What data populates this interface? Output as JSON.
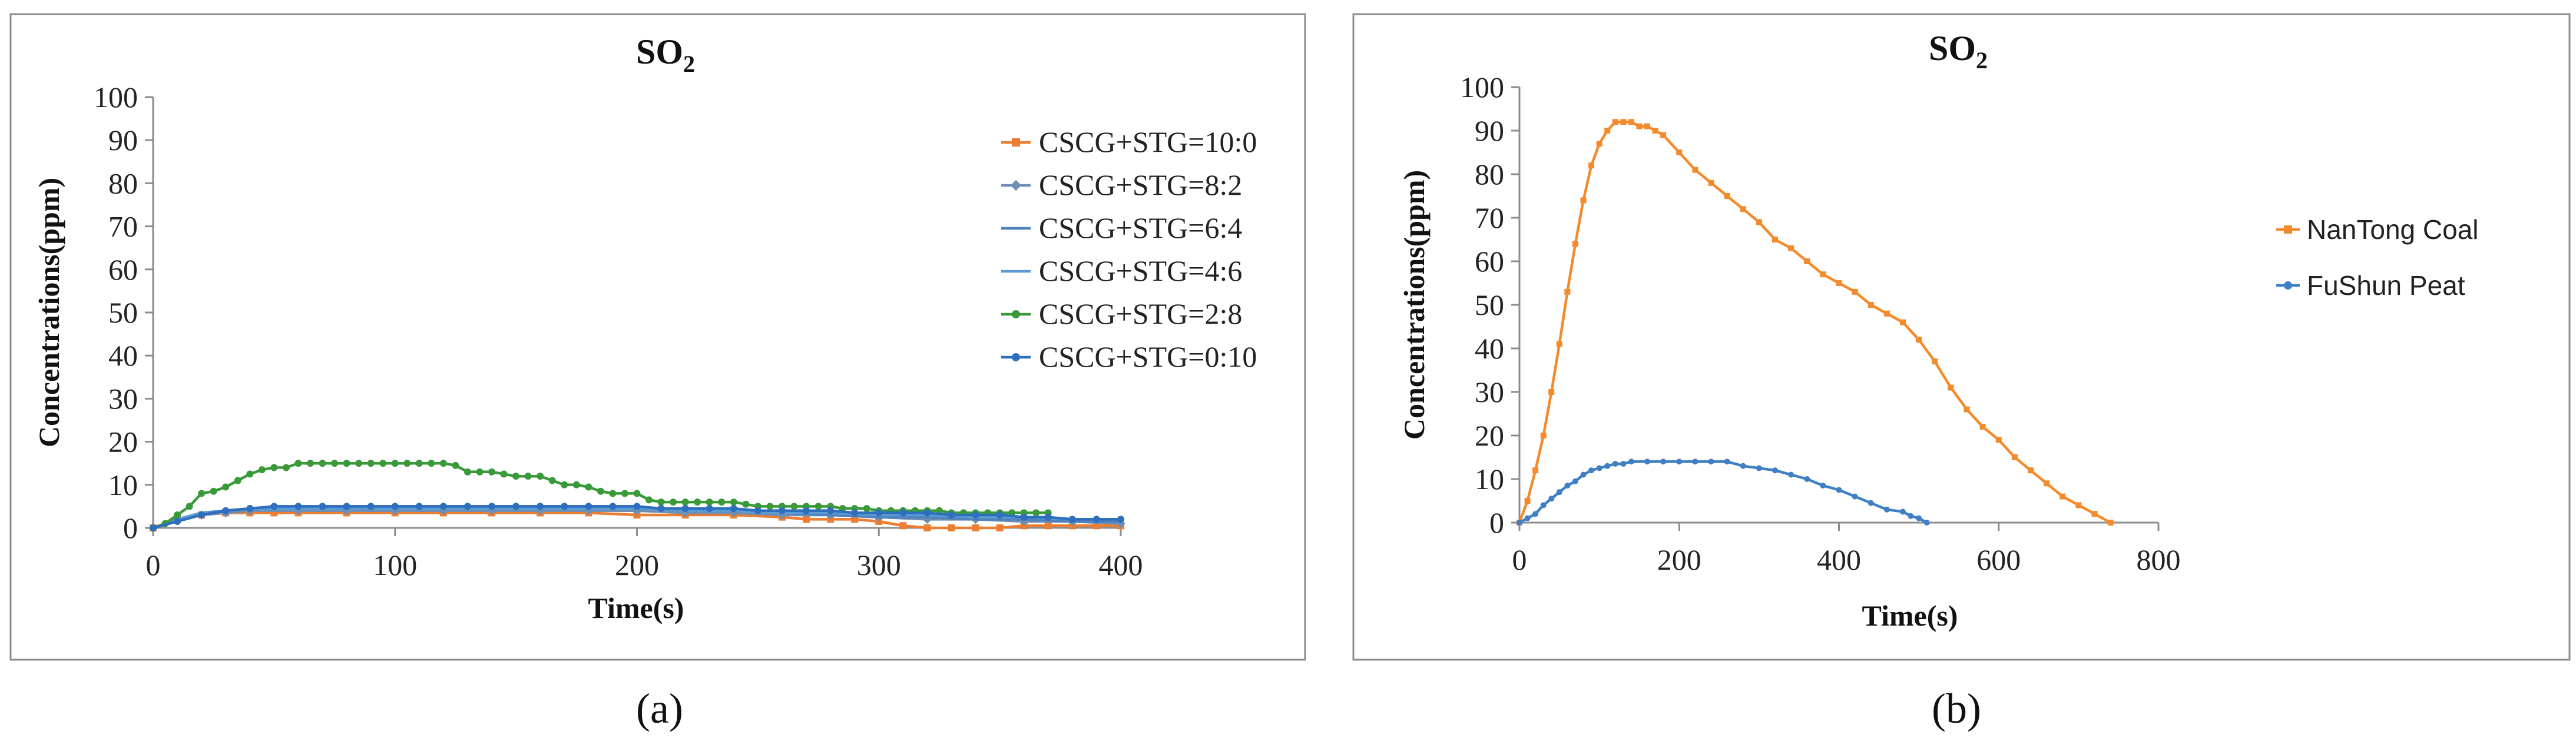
{
  "charts": [
    {
      "caption": "(a)",
      "chart_data": {
        "type": "line",
        "title_main": "SO",
        "title_sub": "2",
        "xlabel": "Time(s)",
        "ylabel": "Concentrations(ppm)",
        "xlim": [
          0,
          400
        ],
        "ylim": [
          0,
          100
        ],
        "xticks": [
          0,
          100,
          200,
          300,
          400
        ],
        "yticks": [
          0,
          10,
          20,
          30,
          40,
          50,
          60,
          70,
          80,
          90,
          100
        ],
        "legend_position": "right",
        "series": [
          {
            "name": "CSCG+STG=10:0",
            "color": "#ed7d31",
            "marker": "square",
            "x": [
              0,
              10,
              20,
              30,
              40,
              50,
              60,
              80,
              100,
              120,
              140,
              160,
              180,
              200,
              220,
              240,
              260,
              270,
              280,
              290,
              300,
              310,
              320,
              330,
              340,
              350,
              360,
              370,
              380,
              390,
              400
            ],
            "y": [
              0,
              2,
              3,
              3.5,
              3.5,
              3.5,
              3.5,
              3.5,
              3.5,
              3.5,
              3.5,
              3.5,
              3.5,
              3,
              3,
              3,
              2.5,
              2,
              2,
              2,
              1.5,
              0.5,
              0,
              0,
              0,
              0,
              0.5,
              0.5,
              0.5,
              0.5,
              0.5
            ]
          },
          {
            "name": "CSCG+STG=8:2",
            "color": "#6e8fb3",
            "marker": "diamond",
            "x": [
              0,
              10,
              20,
              30,
              40,
              60,
              80,
              100,
              120,
              140,
              160,
              180,
              200,
              220,
              240,
              260,
              280,
              300,
              320,
              340,
              360,
              380,
              400
            ],
            "y": [
              0,
              2,
              3,
              3.5,
              4,
              4,
              4,
              4,
              4,
              4,
              4,
              4,
              4,
              3.5,
              3.5,
              3,
              3,
              2.5,
              2,
              2,
              1.5,
              1.5,
              1
            ]
          },
          {
            "name": "CSCG+STG=6:4",
            "color": "#4f81bd",
            "marker": "none",
            "x": [
              0,
              10,
              20,
              30,
              40,
              60,
              80,
              100,
              120,
              140,
              160,
              180,
              200,
              220,
              240,
              260,
              280,
              300,
              320,
              340,
              360,
              380,
              400
            ],
            "y": [
              0,
              2,
              3.5,
              4,
              4.5,
              4.5,
              4.5,
              4.5,
              4.5,
              4.5,
              4.5,
              4.5,
              4.5,
              4,
              4,
              3.5,
              3,
              2.5,
              2.5,
              2,
              2,
              1.5,
              1.5
            ]
          },
          {
            "name": "CSCG+STG=4:6",
            "color": "#5b9bd5",
            "marker": "none",
            "x": [
              0,
              10,
              20,
              30,
              40,
              60,
              80,
              100,
              120,
              140,
              160,
              180,
              200,
              220,
              240,
              260,
              280,
              300,
              320,
              340,
              360,
              380,
              400
            ],
            "y": [
              0,
              2,
              3.5,
              4,
              4.5,
              4.5,
              4.5,
              4.5,
              4.5,
              4.5,
              4.5,
              4.5,
              4.5,
              4,
              4,
              3.5,
              3.5,
              3,
              3,
              2.5,
              2.5,
              2,
              2
            ]
          },
          {
            "name": "CSCG+STG=2:8",
            "color": "#3a9a3a",
            "marker": "circle",
            "x": [
              0,
              5,
              10,
              15,
              20,
              25,
              30,
              35,
              40,
              45,
              50,
              55,
              60,
              65,
              70,
              75,
              80,
              85,
              90,
              95,
              100,
              105,
              110,
              115,
              120,
              125,
              130,
              135,
              140,
              145,
              150,
              155,
              160,
              165,
              170,
              175,
              180,
              185,
              190,
              195,
              200,
              205,
              210,
              215,
              220,
              225,
              230,
              235,
              240,
              245,
              250,
              255,
              260,
              265,
              270,
              275,
              280,
              285,
              290,
              295,
              300,
              305,
              310,
              315,
              320,
              325,
              330,
              335,
              340,
              345,
              350,
              355,
              360,
              365,
              370
            ],
            "y": [
              0,
              1,
              3,
              5,
              8,
              8.5,
              9.5,
              11,
              12.5,
              13.5,
              14,
              14,
              15,
              15,
              15,
              15,
              15,
              15,
              15,
              15,
              15,
              15,
              15,
              15,
              15,
              14.5,
              13,
              13,
              13,
              12.5,
              12,
              12,
              12,
              11,
              10,
              10,
              9.5,
              8.5,
              8,
              8,
              8,
              6.5,
              6,
              6,
              6,
              6,
              6,
              6,
              6,
              5.5,
              5,
              5,
              5,
              5,
              5,
              5,
              5,
              4.5,
              4.5,
              4.5,
              4,
              4,
              4,
              4,
              4,
              4,
              3.5,
              3.5,
              3.5,
              3.5,
              3.5,
              3.5,
              3.5,
              3.5,
              3.5
            ]
          },
          {
            "name": "CSCG+STG=0:10",
            "color": "#2e6fbd",
            "marker": "circle",
            "x": [
              0,
              10,
              20,
              30,
              40,
              50,
              60,
              70,
              80,
              90,
              100,
              110,
              120,
              130,
              140,
              150,
              160,
              170,
              180,
              190,
              200,
              210,
              220,
              230,
              240,
              250,
              260,
              270,
              280,
              290,
              300,
              310,
              320,
              330,
              340,
              350,
              360,
              370,
              380,
              390,
              400
            ],
            "y": [
              0,
              1.5,
              3,
              4,
              4.5,
              5,
              5,
              5,
              5,
              5,
              5,
              5,
              5,
              5,
              5,
              5,
              5,
              5,
              5,
              5,
              5,
              4.5,
              4.5,
              4.5,
              4.5,
              4,
              4,
              4,
              4,
              3.5,
              3.5,
              3.5,
              3.5,
              3,
              3,
              3,
              2.5,
              2.5,
              2,
              2,
              2
            ]
          }
        ]
      }
    },
    {
      "caption": "(b)",
      "chart_data": {
        "type": "line",
        "title_main": "SO",
        "title_sub": "2",
        "xlabel": "Time(s)",
        "ylabel": "Concentrations(ppm)",
        "xlim": [
          0,
          800
        ],
        "ylim": [
          0,
          100
        ],
        "xticks": [
          0,
          200,
          400,
          600,
          800
        ],
        "yticks": [
          0,
          10,
          20,
          30,
          40,
          50,
          60,
          70,
          80,
          90,
          100
        ],
        "legend_position": "right",
        "series": [
          {
            "name": "NanTong Coal",
            "color": "#f58a2b",
            "marker": "square",
            "x": [
              0,
              10,
              20,
              30,
              40,
              50,
              60,
              70,
              80,
              90,
              100,
              110,
              120,
              130,
              140,
              150,
              160,
              170,
              180,
              200,
              220,
              240,
              260,
              280,
              300,
              320,
              340,
              360,
              380,
              400,
              420,
              440,
              460,
              480,
              500,
              520,
              540,
              560,
              580,
              600,
              620,
              640,
              660,
              680,
              700,
              720,
              740
            ],
            "y": [
              0,
              5,
              12,
              20,
              30,
              41,
              53,
              64,
              74,
              82,
              87,
              90,
              92,
              92,
              92,
              91,
              91,
              90,
              89,
              85,
              81,
              78,
              75,
              72,
              69,
              65,
              63,
              60,
              57,
              55,
              53,
              50,
              48,
              46,
              42,
              37,
              31,
              26,
              22,
              19,
              15,
              12,
              9,
              6,
              4,
              2,
              0
            ]
          },
          {
            "name": "FuShun Peat",
            "color": "#3f7fc4",
            "marker": "circle",
            "x": [
              0,
              10,
              20,
              30,
              40,
              50,
              60,
              70,
              80,
              90,
              100,
              110,
              120,
              130,
              140,
              160,
              180,
              200,
              220,
              240,
              260,
              280,
              300,
              320,
              340,
              360,
              380,
              400,
              420,
              440,
              460,
              480,
              490,
              500,
              510
            ],
            "y": [
              0,
              1,
              2,
              4,
              5.5,
              7,
              8.5,
              9.5,
              11,
              12,
              12.5,
              13,
              13.5,
              13.5,
              14,
              14,
              14,
              14,
              14,
              14,
              14,
              13,
              12.5,
              12,
              11,
              10,
              8.5,
              7.5,
              6,
              4.5,
              3,
              2.5,
              1.5,
              1,
              0
            ]
          }
        ]
      }
    }
  ]
}
